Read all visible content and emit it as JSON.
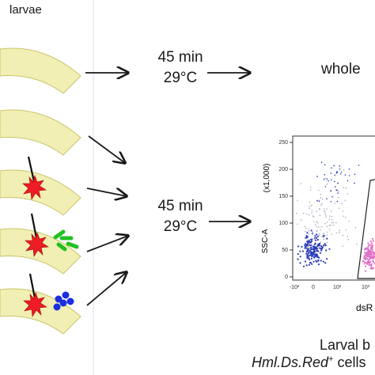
{
  "header": {
    "larvae_label": "larvae"
  },
  "treatments": [
    {
      "injury": false,
      "cargo": "none"
    },
    {
      "injury": false,
      "cargo": "none"
    },
    {
      "injury": true,
      "cargo": "none"
    },
    {
      "injury": true,
      "cargo": "green-bacteria"
    },
    {
      "injury": true,
      "cargo": "blue-beads"
    }
  ],
  "steps": {
    "upper": {
      "line1": "45 min",
      "line2": "29°C"
    },
    "lower": {
      "line1": "45 min",
      "line2": "29°C"
    }
  },
  "outputs": {
    "upper_label": "whole"
  },
  "flow_plot": {
    "y_axis_label": "SSC-A",
    "y_axis_unit": "(x1,000)",
    "y_ticks": [
      "250",
      "200",
      "150",
      "100",
      "50",
      "0"
    ],
    "x_ticks": [
      "-10²",
      "0",
      "10²",
      "10³"
    ],
    "x_axis_label_fragment": "dsR"
  },
  "caption": {
    "line1": "Larval b",
    "line2_italic": "Hml.Ds.Red",
    "line2_sup": "+",
    "line2_rest": " cells"
  },
  "colors": {
    "larva_fill": "#f2efb4",
    "larva_stroke": "#c8c46a",
    "wound_red": "#ee1c24",
    "bacteria_green": "#22c022",
    "bead_blue": "#1a2fe0",
    "scatter_blue": "#2a3bb8",
    "scatter_pink": "#e070c8",
    "scatter_grey": "#b8b8c8"
  }
}
